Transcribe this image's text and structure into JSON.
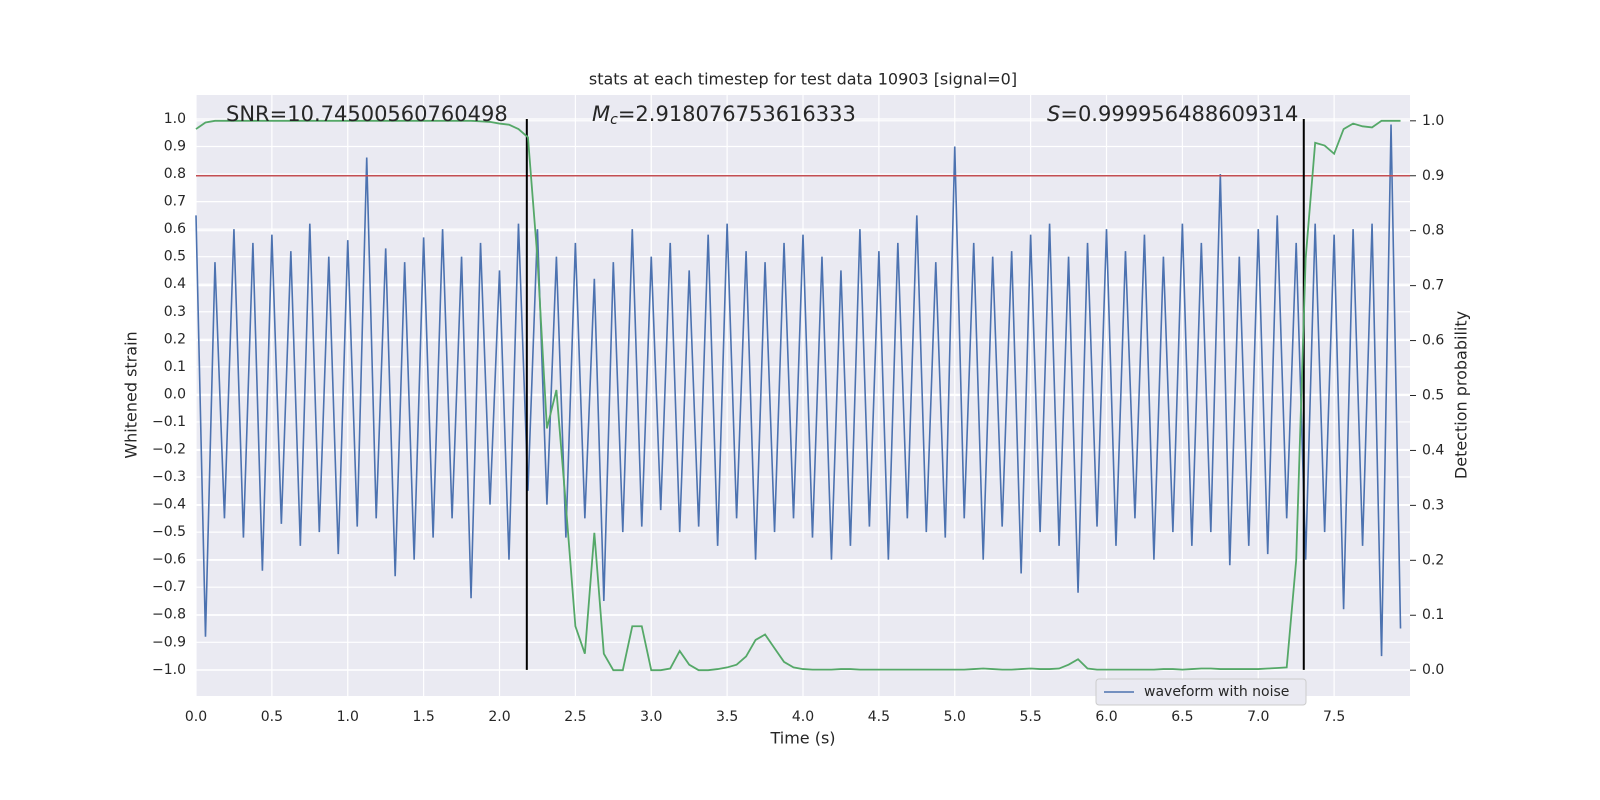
{
  "chart_data": {
    "type": "line",
    "title": "stats at each timestep for test data 10903 [signal=0]",
    "xlabel": "Time (s)",
    "ylabel": "Whitened strain",
    "y2label": "Detection probability",
    "annotations": [
      {
        "text": "SNR=10.74500560760498"
      },
      {
        "symbol": "M",
        "subscript": "c",
        "text": "=2.918076753616333"
      },
      {
        "symbol": "S",
        "text": "=0.999956488609314"
      }
    ],
    "grid": true,
    "legend": "lower right",
    "x": [
      0,
      0.0625,
      0.125,
      0.1875,
      0.25,
      0.3125,
      0.375,
      0.4375,
      0.5,
      0.5625,
      0.625,
      0.6875,
      0.75,
      0.8125,
      0.875,
      0.9375,
      1,
      1.0625,
      1.125,
      1.1875,
      1.25,
      1.3125,
      1.375,
      1.4375,
      1.5,
      1.5625,
      1.625,
      1.6875,
      1.75,
      1.8125,
      1.875,
      1.9375,
      2,
      2.0625,
      2.125,
      2.1875,
      2.25,
      2.3125,
      2.375,
      2.4375,
      2.5,
      2.5625,
      2.625,
      2.6875,
      2.75,
      2.8125,
      2.875,
      2.9375,
      3,
      3.0625,
      3.125,
      3.1875,
      3.25,
      3.3125,
      3.375,
      3.4375,
      3.5,
      3.5625,
      3.625,
      3.6875,
      3.75,
      3.8125,
      3.875,
      3.9375,
      4,
      4.0625,
      4.125,
      4.1875,
      4.25,
      4.3125,
      4.375,
      4.4375,
      4.5,
      4.5625,
      4.625,
      4.6875,
      4.75,
      4.8125,
      4.875,
      4.9375,
      5,
      5.0625,
      5.125,
      5.1875,
      5.25,
      5.3125,
      5.375,
      5.4375,
      5.5,
      5.5625,
      5.625,
      5.6875,
      5.75,
      5.8125,
      5.875,
      5.9375,
      6,
      6.0625,
      6.125,
      6.1875,
      6.25,
      6.3125,
      6.375,
      6.4375,
      6.5,
      6.5625,
      6.625,
      6.6875,
      6.75,
      6.8125,
      6.875,
      6.9375,
      7,
      7.0625,
      7.125,
      7.1875,
      7.25,
      7.3125,
      7.375,
      7.4375,
      7.5,
      7.5625,
      7.625,
      7.6875,
      7.75,
      7.8125,
      7.875,
      7.9375
    ],
    "series": [
      {
        "name": "waveform with noise",
        "color": "#4c72b0",
        "values": [
          0.65,
          -0.88,
          0.48,
          -0.45,
          0.6,
          -0.52,
          0.55,
          -0.64,
          0.58,
          -0.47,
          0.52,
          -0.55,
          0.62,
          -0.5,
          0.5,
          -0.58,
          0.56,
          -0.48,
          0.86,
          -0.45,
          0.53,
          -0.66,
          0.48,
          -0.6,
          0.57,
          -0.52,
          0.6,
          -0.45,
          0.5,
          -0.74,
          0.55,
          -0.4,
          0.45,
          -0.6,
          0.62,
          -0.35,
          0.6,
          -0.4,
          0.5,
          -0.52,
          0.55,
          -0.45,
          0.42,
          -0.75,
          0.48,
          -0.5,
          0.6,
          -0.48,
          0.5,
          -0.42,
          0.55,
          -0.5,
          0.45,
          -0.48,
          0.58,
          -0.55,
          0.62,
          -0.45,
          0.52,
          -0.6,
          0.48,
          -0.5,
          0.55,
          -0.45,
          0.58,
          -0.52,
          0.5,
          -0.6,
          0.45,
          -0.55,
          0.6,
          -0.48,
          0.52,
          -0.6,
          0.55,
          -0.45,
          0.65,
          -0.5,
          0.48,
          -0.52,
          0.9,
          -0.45,
          0.55,
          -0.6,
          0.5,
          -0.48,
          0.52,
          -0.65,
          0.58,
          -0.5,
          0.62,
          -0.55,
          0.5,
          -0.72,
          0.55,
          -0.48,
          0.6,
          -0.55,
          0.52,
          -0.45,
          0.58,
          -0.6,
          0.5,
          -0.5,
          0.62,
          -0.55,
          0.55,
          -0.5,
          0.8,
          -0.62,
          0.5,
          -0.55,
          0.6,
          -0.58,
          0.65,
          -0.45,
          0.55,
          -0.6,
          0.62,
          -0.5,
          0.58,
          -0.78,
          0.6,
          -0.55,
          0.62,
          -0.95,
          0.98,
          -0.85
        ]
      }
    ],
    "probability": {
      "color": "#55a868",
      "axis": "y2",
      "values": [
        0.985,
        0.997,
        1,
        1,
        1,
        1,
        1,
        1,
        1,
        1,
        1,
        1,
        1,
        1,
        1,
        1,
        1,
        1,
        1,
        1,
        1,
        1,
        1,
        1,
        1,
        1,
        1,
        1,
        1,
        1,
        0.999,
        0.998,
        0.995,
        0.993,
        0.985,
        0.97,
        0.75,
        0.44,
        0.51,
        0.3,
        0.08,
        0.03,
        0.25,
        0.03,
        0,
        0,
        0.08,
        0.08,
        0,
        0,
        0.003,
        0.035,
        0.01,
        0,
        0,
        0.002,
        0.005,
        0.01,
        0.025,
        0.055,
        0.065,
        0.04,
        0.015,
        0.005,
        0.002,
        0.001,
        0.001,
        0.001,
        0.002,
        0.002,
        0.001,
        0.001,
        0.001,
        0.001,
        0.001,
        0.001,
        0.001,
        0.001,
        0.001,
        0.001,
        0.001,
        0.001,
        0.002,
        0.003,
        0.002,
        0.001,
        0.001,
        0.002,
        0.003,
        0.002,
        0.002,
        0.003,
        0.01,
        0.02,
        0.003,
        0.001,
        0.001,
        0.001,
        0.001,
        0.001,
        0.001,
        0.001,
        0.002,
        0.002,
        0.001,
        0.002,
        0.003,
        0.003,
        0.002,
        0.002,
        0.002,
        0.002,
        0.002,
        0.003,
        0.004,
        0.005,
        0.2,
        0.75,
        0.96,
        0.955,
        0.94,
        0.985,
        0.995,
        0.99,
        0.988,
        1,
        1,
        1
      ]
    },
    "threshold": {
      "y2": 0.9,
      "color": "#c44e52"
    },
    "vlines": {
      "x": [
        2.18,
        7.3
      ],
      "ymin": -1,
      "ymax": 1,
      "color": "#000000"
    },
    "xlim": [
      0,
      8
    ],
    "ylim": [
      -1.095,
      1.087
    ],
    "y2lim": [
      -0.047,
      1.047
    ],
    "xticks": [
      {
        "value": 0,
        "label": "0.0"
      },
      {
        "value": 0.5,
        "label": "0.5"
      },
      {
        "value": 1,
        "label": "1.0"
      },
      {
        "value": 1.5,
        "label": "1.5"
      },
      {
        "value": 2,
        "label": "2.0"
      },
      {
        "value": 2.5,
        "label": "2.5"
      },
      {
        "value": 3,
        "label": "3.0"
      },
      {
        "value": 3.5,
        "label": "3.5"
      },
      {
        "value": 4,
        "label": "4.0"
      },
      {
        "value": 4.5,
        "label": "4.5"
      },
      {
        "value": 5,
        "label": "5.0"
      },
      {
        "value": 5.5,
        "label": "5.5"
      },
      {
        "value": 6,
        "label": "6.0"
      },
      {
        "value": 6.5,
        "label": "6.5"
      },
      {
        "value": 7,
        "label": "7.0"
      },
      {
        "value": 7.5,
        "label": "7.5"
      }
    ],
    "yticks": [
      {
        "value": -1,
        "label": "−1.0"
      },
      {
        "value": -0.9,
        "label": "−0.9"
      },
      {
        "value": -0.8,
        "label": "−0.8"
      },
      {
        "value": -0.7,
        "label": "−0.7"
      },
      {
        "value": -0.6,
        "label": "−0.6"
      },
      {
        "value": -0.5,
        "label": "−0.5"
      },
      {
        "value": -0.4,
        "label": "−0.4"
      },
      {
        "value": -0.3,
        "label": "−0.3"
      },
      {
        "value": -0.2,
        "label": "−0.2"
      },
      {
        "value": -0.1,
        "label": "−0.1"
      },
      {
        "value": 0,
        "label": "0.0"
      },
      {
        "value": 0.1,
        "label": "0.1"
      },
      {
        "value": 0.2,
        "label": "0.2"
      },
      {
        "value": 0.3,
        "label": "0.3"
      },
      {
        "value": 0.4,
        "label": "0.4"
      },
      {
        "value": 0.5,
        "label": "0.5"
      },
      {
        "value": 0.6,
        "label": "0.6"
      },
      {
        "value": 0.7,
        "label": "0.7"
      },
      {
        "value": 0.8,
        "label": "0.8"
      },
      {
        "value": 0.9,
        "label": "0.9"
      },
      {
        "value": 1,
        "label": "1.0"
      }
    ],
    "y2ticks": [
      {
        "value": 0,
        "label": "0.0"
      },
      {
        "value": 0.1,
        "label": "0.1"
      },
      {
        "value": 0.2,
        "label": "0.2"
      },
      {
        "value": 0.3,
        "label": "0.3"
      },
      {
        "value": 0.4,
        "label": "0.4"
      },
      {
        "value": 0.5,
        "label": "0.5"
      },
      {
        "value": 0.6,
        "label": "0.6"
      },
      {
        "value": 0.7,
        "label": "0.7"
      },
      {
        "value": 0.8,
        "label": "0.8"
      },
      {
        "value": 0.9,
        "label": "0.9"
      },
      {
        "value": 1,
        "label": "1.0"
      }
    ]
  }
}
